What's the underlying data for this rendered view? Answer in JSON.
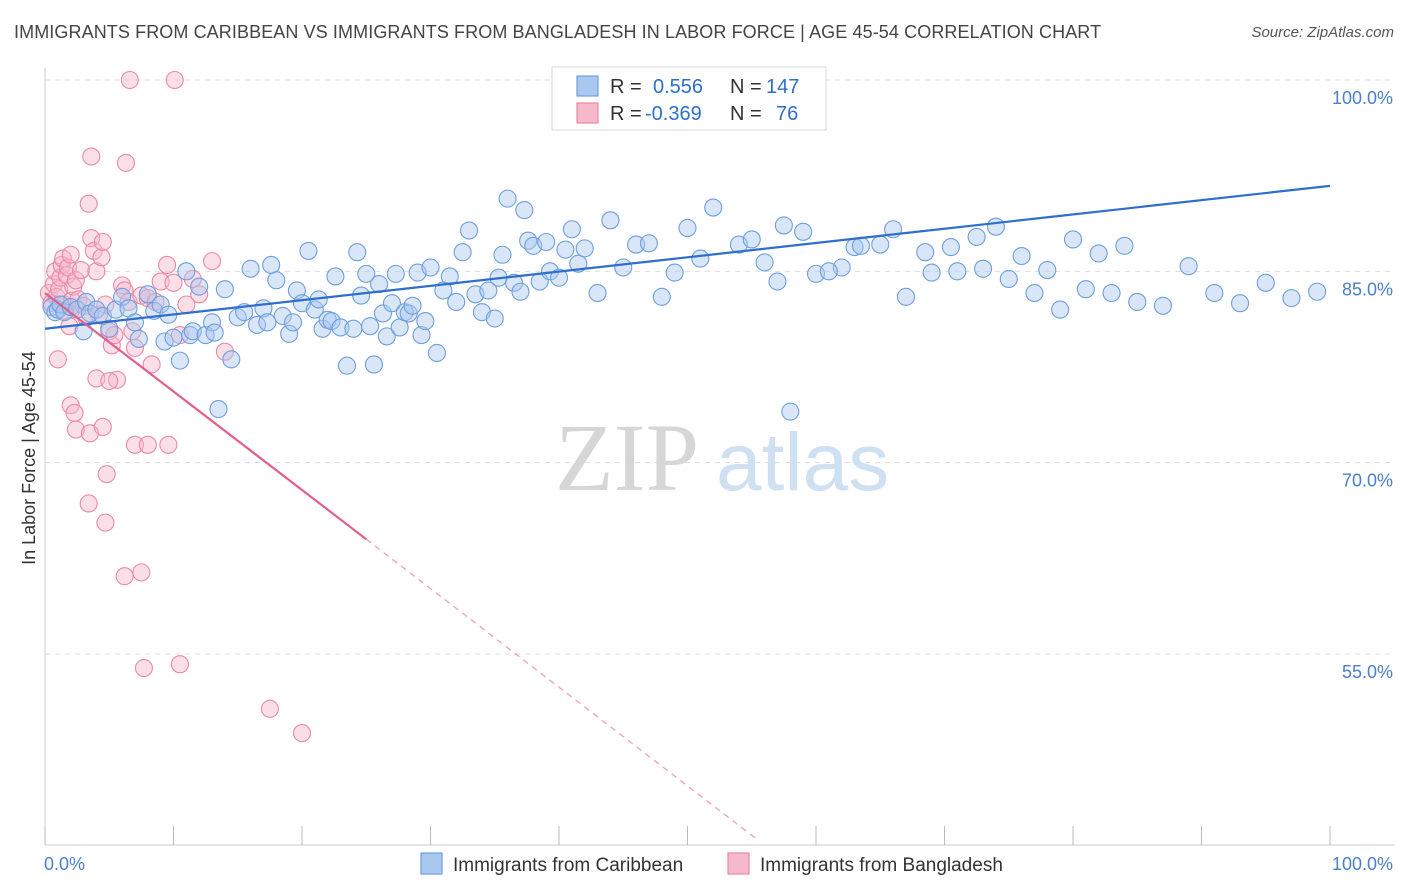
{
  "title": "IMMIGRANTS FROM CARIBBEAN VS IMMIGRANTS FROM BANGLADESH IN LABOR FORCE | AGE 45-54 CORRELATION CHART",
  "source": "Source: ZipAtlas.com",
  "watermark": {
    "zip": "ZIP",
    "atlas": "atlas"
  },
  "legend_box": {
    "r_label": "R =",
    "n_label": "N =",
    "rows": [
      {
        "r": "0.556",
        "n": "147",
        "color": "#a9c8ef",
        "stroke": "#6f9fdc"
      },
      {
        "r": "-0.369",
        "n": "76",
        "color": "#f6b8cb",
        "stroke": "#e98aa6"
      }
    ]
  },
  "chart_data": {
    "type": "scatter",
    "title": "IMMIGRANTS FROM CARIBBEAN VS IMMIGRANTS FROM BANGLADESH IN LABOR FORCE | AGE 45-54 CORRELATION CHART",
    "xlabel": "",
    "ylabel": "In Labor Force | Age 45-54",
    "xlim": [
      0,
      100
    ],
    "ylim": [
      40,
      102
    ],
    "x_tick_labels": [
      "0.0%",
      "100.0%"
    ],
    "y_ticks": [
      55,
      70,
      85,
      100
    ],
    "y_tick_labels": [
      "55.0%",
      "70.0%",
      "85.0%",
      "100.0%"
    ],
    "grid": true,
    "legend_position": "bottom",
    "series": [
      {
        "name": "Immigrants from Caribbean",
        "color": "#6f9fdc",
        "fill": "#a9c8ef",
        "trend": {
          "x0": 0,
          "y0": 80.5,
          "x1": 100,
          "y1": 91.7,
          "style": "solid",
          "color": "#2e6fcb"
        },
        "points": [
          [
            0.5,
            82.2
          ],
          [
            0.8,
            81.8
          ],
          [
            1.0,
            82.0
          ],
          [
            1.2,
            82.4
          ],
          [
            1.5,
            81.8
          ],
          [
            2.0,
            82.2
          ],
          [
            2.5,
            82.0
          ],
          [
            3.0,
            80.3
          ],
          [
            3.2,
            82.6
          ],
          [
            3.5,
            81.7
          ],
          [
            4.0,
            82.0
          ],
          [
            4.5,
            81.5
          ],
          [
            5.0,
            80.5
          ],
          [
            5.5,
            82.0
          ],
          [
            6.0,
            83.0
          ],
          [
            6.5,
            82.1
          ],
          [
            7.0,
            81.0
          ],
          [
            7.3,
            79.7
          ],
          [
            8.0,
            83.2
          ],
          [
            8.5,
            81.9
          ],
          [
            9.0,
            82.4
          ],
          [
            9.3,
            79.5
          ],
          [
            9.6,
            81.6
          ],
          [
            10.0,
            79.8
          ],
          [
            10.5,
            78.0
          ],
          [
            11.0,
            85.0
          ],
          [
            11.3,
            80.0
          ],
          [
            11.5,
            80.3
          ],
          [
            12.0,
            83.8
          ],
          [
            12.5,
            80.0
          ],
          [
            13.0,
            81.0
          ],
          [
            13.2,
            80.2
          ],
          [
            13.5,
            74.2
          ],
          [
            14.0,
            83.6
          ],
          [
            14.5,
            78.1
          ],
          [
            15.0,
            81.4
          ],
          [
            15.5,
            81.8
          ],
          [
            16.0,
            85.2
          ],
          [
            16.5,
            80.8
          ],
          [
            17.0,
            82.1
          ],
          [
            17.3,
            81.0
          ],
          [
            17.6,
            85.5
          ],
          [
            18.0,
            84.3
          ],
          [
            18.5,
            81.5
          ],
          [
            19.0,
            80.1
          ],
          [
            19.3,
            81.0
          ],
          [
            19.6,
            83.5
          ],
          [
            20.0,
            82.5
          ],
          [
            20.5,
            86.6
          ],
          [
            21.0,
            82.0
          ],
          [
            21.3,
            82.8
          ],
          [
            21.6,
            80.5
          ],
          [
            22.0,
            81.2
          ],
          [
            22.3,
            81.1
          ],
          [
            22.6,
            84.6
          ],
          [
            23.0,
            80.6
          ],
          [
            23.5,
            77.6
          ],
          [
            24.0,
            80.5
          ],
          [
            24.3,
            86.5
          ],
          [
            24.6,
            83.1
          ],
          [
            25.0,
            84.8
          ],
          [
            25.3,
            80.7
          ],
          [
            25.6,
            77.7
          ],
          [
            26.0,
            84.0
          ],
          [
            26.3,
            81.7
          ],
          [
            26.6,
            79.9
          ],
          [
            27.0,
            82.5
          ],
          [
            27.3,
            84.8
          ],
          [
            27.6,
            80.6
          ],
          [
            28.0,
            81.8
          ],
          [
            28.3,
            81.7
          ],
          [
            28.6,
            82.3
          ],
          [
            29.0,
            84.9
          ],
          [
            29.3,
            80.0
          ],
          [
            29.6,
            81.1
          ],
          [
            30.0,
            85.3
          ],
          [
            30.5,
            78.6
          ],
          [
            31.0,
            83.5
          ],
          [
            31.5,
            84.6
          ],
          [
            32.0,
            82.6
          ],
          [
            32.5,
            86.5
          ],
          [
            33.0,
            88.2
          ],
          [
            33.5,
            83.2
          ],
          [
            34.0,
            81.8
          ],
          [
            34.5,
            83.5
          ],
          [
            35.0,
            81.3
          ],
          [
            35.3,
            84.5
          ],
          [
            35.6,
            86.3
          ],
          [
            36.0,
            90.7
          ],
          [
            36.5,
            84.1
          ],
          [
            37.0,
            83.4
          ],
          [
            37.3,
            89.8
          ],
          [
            37.6,
            87.4
          ],
          [
            38.0,
            87.0
          ],
          [
            38.5,
            84.2
          ],
          [
            39.0,
            87.3
          ],
          [
            39.3,
            85.0
          ],
          [
            40.0,
            84.5
          ],
          [
            40.5,
            86.7
          ],
          [
            41.0,
            88.3
          ],
          [
            41.5,
            85.6
          ],
          [
            42.0,
            86.8
          ],
          [
            43.0,
            83.3
          ],
          [
            44.0,
            89.0
          ],
          [
            45.0,
            85.3
          ],
          [
            46.0,
            87.1
          ],
          [
            47.0,
            87.2
          ],
          [
            48.0,
            83.0
          ],
          [
            49.0,
            84.9
          ],
          [
            50.0,
            88.4
          ],
          [
            51.0,
            86.0
          ],
          [
            52.0,
            90.0
          ],
          [
            54.0,
            87.1
          ],
          [
            56.0,
            85.7
          ],
          [
            57.0,
            84.2
          ],
          [
            58.0,
            74.0
          ],
          [
            60.0,
            84.8
          ],
          [
            62.0,
            85.3
          ],
          [
            63.0,
            86.9
          ],
          [
            65.0,
            87.1
          ],
          [
            67.0,
            83.0
          ],
          [
            69.0,
            84.9
          ],
          [
            71.0,
            85.0
          ],
          [
            73.0,
            85.2
          ],
          [
            75.0,
            84.4
          ],
          [
            77.0,
            83.3
          ],
          [
            79.0,
            82.0
          ],
          [
            81.0,
            83.6
          ],
          [
            83.0,
            83.3
          ],
          [
            85.0,
            82.6
          ],
          [
            87.0,
            82.3
          ],
          [
            89.0,
            85.4
          ],
          [
            91.0,
            83.3
          ],
          [
            93.0,
            82.5
          ],
          [
            95.0,
            84.1
          ],
          [
            97.0,
            82.9
          ],
          [
            99.0,
            83.4
          ],
          [
            55.0,
            87.5
          ],
          [
            57.5,
            88.6
          ],
          [
            59.0,
            88.1
          ],
          [
            61.0,
            85.0
          ],
          [
            63.5,
            87.0
          ],
          [
            66.0,
            88.3
          ],
          [
            68.5,
            86.5
          ],
          [
            70.5,
            86.9
          ],
          [
            72.5,
            87.7
          ],
          [
            74.0,
            88.5
          ],
          [
            76.0,
            86.2
          ],
          [
            78.0,
            85.1
          ],
          [
            80.0,
            87.5
          ],
          [
            82.0,
            86.4
          ],
          [
            84.0,
            87.0
          ]
        ]
      },
      {
        "name": "Immigrants from Bangladesh",
        "color": "#e98aa6",
        "fill": "#f6b8cb",
        "trend": {
          "x0": 0,
          "y0": 83.3,
          "x1": 25,
          "y1": 64.0,
          "x_dash_end": 55.5,
          "y_dash_end": 40.4,
          "style": "solid-then-dashed",
          "color": "#e2608c"
        },
        "points": [
          [
            0.3,
            83.3
          ],
          [
            0.5,
            82.5
          ],
          [
            0.7,
            84.0
          ],
          [
            0.8,
            85.0
          ],
          [
            0.9,
            83.0
          ],
          [
            1.0,
            82.0
          ],
          [
            1.1,
            83.6
          ],
          [
            1.2,
            84.5
          ],
          [
            1.3,
            85.5
          ],
          [
            1.4,
            86.0
          ],
          [
            1.5,
            82.4
          ],
          [
            1.6,
            81.9
          ],
          [
            1.7,
            84.7
          ],
          [
            1.8,
            85.3
          ],
          [
            1.9,
            80.7
          ],
          [
            2.0,
            86.3
          ],
          [
            2.1,
            82.7
          ],
          [
            2.2,
            83.8
          ],
          [
            2.4,
            84.3
          ],
          [
            2.6,
            82.8
          ],
          [
            2.8,
            85.1
          ],
          [
            3.0,
            82.3
          ],
          [
            3.2,
            81.4
          ],
          [
            3.4,
            90.3
          ],
          [
            3.6,
            87.6
          ],
          [
            3.8,
            86.6
          ],
          [
            4.0,
            85.0
          ],
          [
            4.2,
            81.6
          ],
          [
            4.4,
            86.1
          ],
          [
            4.5,
            87.3
          ],
          [
            4.7,
            82.4
          ],
          [
            5.0,
            80.3
          ],
          [
            5.2,
            79.2
          ],
          [
            5.4,
            80.0
          ],
          [
            5.6,
            76.5
          ],
          [
            6.0,
            83.9
          ],
          [
            6.2,
            83.5
          ],
          [
            6.5,
            82.6
          ],
          [
            6.8,
            80.3
          ],
          [
            7.0,
            79.0
          ],
          [
            7.5,
            83.1
          ],
          [
            8.0,
            82.9
          ],
          [
            8.3,
            77.7
          ],
          [
            8.6,
            82.6
          ],
          [
            9.0,
            84.2
          ],
          [
            9.5,
            85.5
          ],
          [
            10.0,
            84.1
          ],
          [
            10.5,
            80.0
          ],
          [
            11.0,
            82.4
          ],
          [
            11.5,
            84.4
          ],
          [
            12.0,
            83.2
          ],
          [
            13.0,
            85.8
          ],
          [
            14.0,
            78.7
          ],
          [
            1.0,
            78.1
          ],
          [
            2.0,
            74.5
          ],
          [
            2.3,
            73.9
          ],
          [
            2.4,
            72.6
          ],
          [
            3.4,
            66.8
          ],
          [
            3.5,
            72.3
          ],
          [
            4.0,
            76.6
          ],
          [
            4.5,
            72.8
          ],
          [
            4.7,
            65.3
          ],
          [
            4.8,
            69.1
          ],
          [
            5.0,
            76.4
          ],
          [
            6.2,
            61.1
          ],
          [
            7.0,
            71.4
          ],
          [
            7.5,
            61.4
          ],
          [
            7.7,
            53.9
          ],
          [
            8.0,
            71.4
          ],
          [
            9.6,
            71.4
          ],
          [
            10.5,
            54.2
          ],
          [
            17.5,
            50.7
          ],
          [
            20.0,
            48.8
          ],
          [
            6.3,
            93.5
          ],
          [
            3.6,
            94.0
          ],
          [
            6.6,
            100.0
          ],
          [
            10.1,
            100.0
          ]
        ]
      }
    ]
  }
}
